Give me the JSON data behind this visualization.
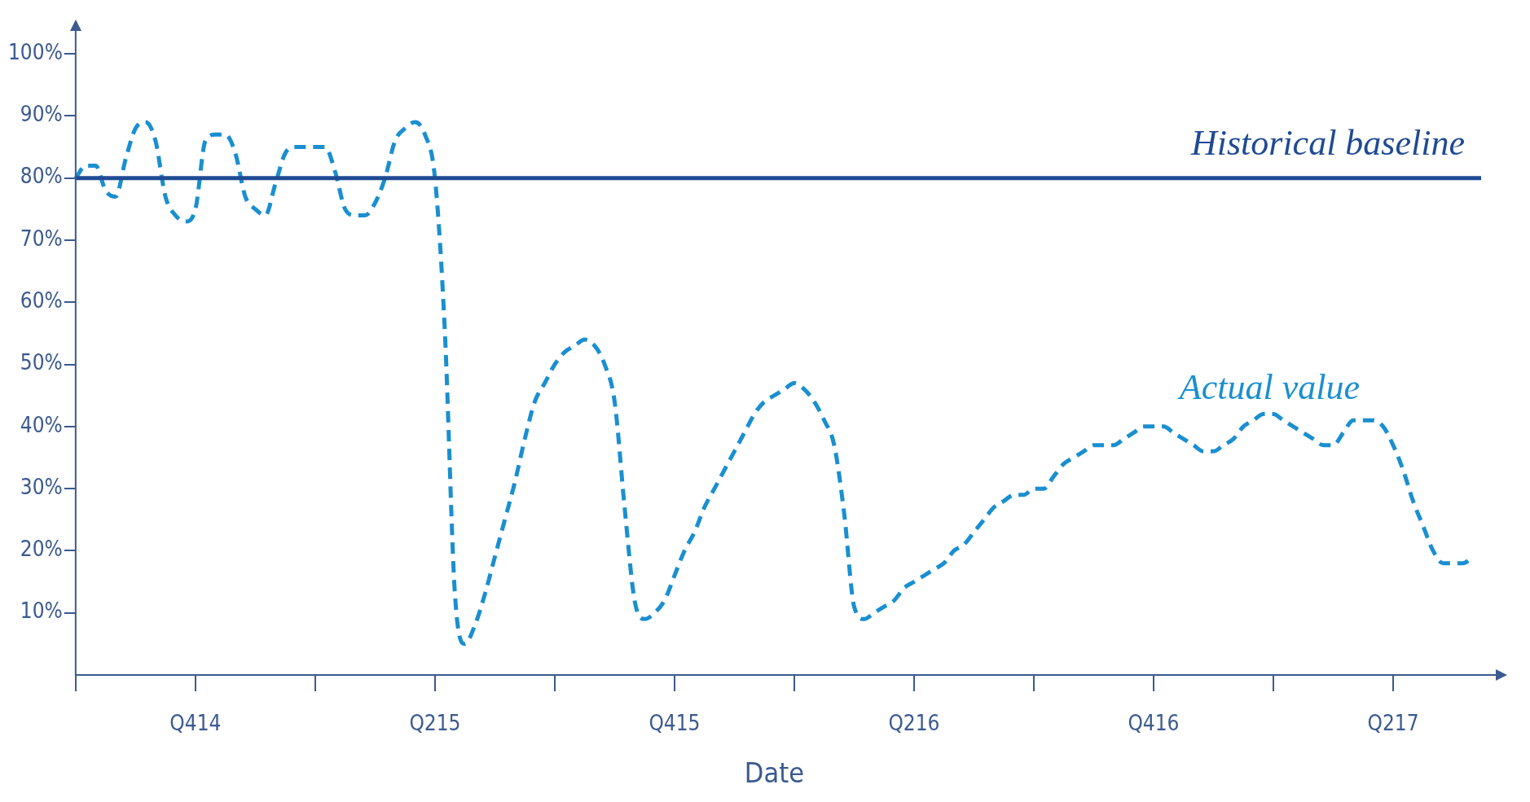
{
  "chart_data": {
    "type": "line",
    "xlabel": "Date",
    "categories": [
      null,
      null,
      null,
      null,
      null,
      null,
      null,
      null,
      null,
      null,
      null,
      null,
      "Q414",
      null,
      null,
      null,
      null,
      null,
      null,
      null,
      null,
      null,
      null,
      null,
      null,
      null,
      null,
      null,
      null,
      null,
      null,
      null,
      null,
      null,
      null,
      null,
      "Q215",
      null,
      null,
      null,
      null,
      null,
      null,
      null,
      null,
      null,
      null,
      null,
      null,
      null,
      null,
      null,
      null,
      null,
      null,
      null,
      null,
      null,
      null,
      null,
      "Q415",
      null,
      null,
      null,
      null,
      null,
      null,
      null,
      null,
      null,
      null,
      null,
      null,
      null,
      null,
      null,
      null,
      null,
      null,
      null,
      null,
      null,
      null,
      null,
      "Q216",
      null,
      null,
      null,
      null,
      null,
      null,
      null,
      null,
      null,
      null,
      null,
      null,
      null,
      null,
      null,
      null,
      null,
      null,
      null,
      null,
      null,
      null,
      null,
      "Q416",
      null,
      null,
      null,
      null,
      null,
      null,
      null,
      null,
      null,
      null,
      null,
      null,
      null,
      null,
      null,
      null,
      null,
      null,
      null,
      null,
      null,
      null,
      null,
      "Q217",
      null,
      null,
      null,
      null,
      null,
      null,
      null,
      null
    ],
    "series": [
      {
        "name": "Actual value",
        "color": "#1a8fd0",
        "line_style": "dashed",
        "values": [
          80,
          82,
          82,
          78,
          77,
          83,
          88,
          89,
          86,
          77,
          74,
          73,
          75,
          86,
          87,
          87,
          84,
          77,
          75,
          74,
          79,
          84,
          85,
          85,
          85,
          85,
          81,
          75,
          74,
          74,
          76,
          80,
          86,
          88,
          89,
          87,
          80,
          55,
          13,
          5,
          8,
          13,
          19,
          25,
          31,
          38,
          44,
          47,
          50,
          52,
          53,
          54,
          53,
          50,
          44,
          27,
          12,
          9,
          10,
          12,
          16,
          20,
          23,
          27,
          30,
          33,
          36,
          39,
          42,
          44,
          45,
          46,
          47,
          46,
          44,
          41,
          37,
          26,
          11,
          9,
          10,
          11,
          12,
          14,
          15,
          16,
          17,
          18,
          20,
          21,
          23,
          25,
          27,
          28,
          29,
          29,
          30,
          30,
          32,
          34,
          35,
          36,
          37,
          37,
          37,
          38,
          39,
          40,
          40,
          40,
          39,
          38,
          37,
          36,
          36,
          37,
          38,
          40,
          41,
          42,
          42,
          41,
          40,
          39,
          38,
          37,
          37,
          39,
          41,
          41,
          41,
          40,
          37,
          33,
          28,
          24,
          20,
          18,
          18,
          18,
          19
        ]
      }
    ],
    "ylim": [
      0,
      105
    ],
    "yticks": [
      {
        "value": 10,
        "label": "10%"
      },
      {
        "value": 20,
        "label": "20%"
      },
      {
        "value": 30,
        "label": "30%"
      },
      {
        "value": 40,
        "label": "40%"
      },
      {
        "value": 50,
        "label": "50%"
      },
      {
        "value": 60,
        "label": "60%"
      },
      {
        "value": 70,
        "label": "70%"
      },
      {
        "value": 80,
        "label": "80%"
      },
      {
        "value": 90,
        "label": "90%"
      },
      {
        "value": 100,
        "label": "100%"
      }
    ],
    "ref_lines": [
      {
        "axis": "y",
        "value": 80,
        "label": "Historical baseline",
        "color": "#1f4a94",
        "line_style": "solid"
      }
    ],
    "grid": false,
    "legend": false,
    "marker": "none"
  }
}
